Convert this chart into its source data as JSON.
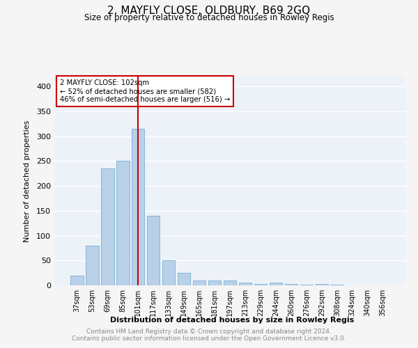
{
  "title": "2, MAYFLY CLOSE, OLDBURY, B69 2GQ",
  "subtitle": "Size of property relative to detached houses in Rowley Regis",
  "xlabel": "Distribution of detached houses by size in Rowley Regis",
  "ylabel": "Number of detached properties",
  "footnote1": "Contains HM Land Registry data © Crown copyright and database right 2024.",
  "footnote2": "Contains public sector information licensed under the Open Government Licence v3.0.",
  "categories": [
    "37sqm",
    "53sqm",
    "69sqm",
    "85sqm",
    "101sqm",
    "117sqm",
    "133sqm",
    "149sqm",
    "165sqm",
    "181sqm",
    "197sqm",
    "213sqm",
    "229sqm",
    "244sqm",
    "260sqm",
    "276sqm",
    "292sqm",
    "308sqm",
    "324sqm",
    "340sqm",
    "356sqm"
  ],
  "values": [
    20,
    80,
    235,
    250,
    315,
    140,
    50,
    25,
    10,
    10,
    10,
    5,
    3,
    5,
    3,
    1,
    3,
    1,
    0,
    0,
    0
  ],
  "bar_color": "#b8d0e8",
  "bar_edge_color": "#7aadd4",
  "vline_x_index": 4,
  "vline_color": "#cc0000",
  "annotation_title": "2 MAYFLY CLOSE: 102sqm",
  "annotation_line1": "← 52% of detached houses are smaller (582)",
  "annotation_line2": "46% of semi-detached houses are larger (516) →",
  "annotation_box_color": "#cc0000",
  "ylim": [
    0,
    420
  ],
  "yticks": [
    0,
    50,
    100,
    150,
    200,
    250,
    300,
    350,
    400
  ],
  "background_color": "#edf2f9",
  "fig_background_color": "#f5f5f5",
  "grid_color": "#ffffff"
}
